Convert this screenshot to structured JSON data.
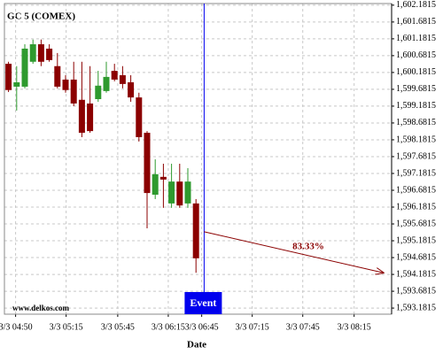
{
  "chart_data": {
    "type": "candlestick",
    "title": "GC 5 (COMEX)",
    "x_label": "Date",
    "watermark": "www.delkos.com",
    "up_color": "#2e9a2e",
    "down_color": "#8b0000",
    "open": [
      1600.44,
      1599.76,
      1599.76,
      1600.5,
      1601.02,
      1600.89,
      1600.37,
      1599.97,
      1599.97,
      1599.37,
      1599.26,
      1599.39,
      1599.63,
      1600.23,
      1600.1,
      1599.89,
      1599.44,
      1598.39,
      1596.55,
      1597.08,
      1596.29,
      1596.94,
      1596.29,
      1596.29
    ],
    "high": [
      1600.5,
      1600.37,
      1601.02,
      1601.16,
      1601.16,
      1601.02,
      1600.76,
      1600.1,
      1600.5,
      1600.5,
      1600.37,
      1600.23,
      1600.5,
      1600.44,
      1600.37,
      1600.1,
      1599.58,
      1598.44,
      1597.6,
      1597.47,
      1597.47,
      1597.47,
      1597.34,
      1596.42
    ],
    "low": [
      1599.6,
      1599.05,
      1599.71,
      1600.44,
      1600.37,
      1600.5,
      1599.71,
      1599.58,
      1599.18,
      1598.26,
      1598.39,
      1599.31,
      1599.58,
      1599.92,
      1599.71,
      1599.31,
      1598.13,
      1595.55,
      1596.42,
      1596.16,
      1596.16,
      1596.16,
      1596.16,
      1594.23
    ],
    "close": [
      1599.66,
      1599.89,
      1600.89,
      1601.02,
      1600.5,
      1600.55,
      1599.76,
      1599.66,
      1599.26,
      1598.39,
      1598.44,
      1599.79,
      1600.05,
      1599.97,
      1599.84,
      1599.44,
      1598.26,
      1596.6,
      1597.16,
      1597.0,
      1596.94,
      1596.23,
      1596.94,
      1594.66
    ],
    "xlim": [
      -0.5,
      47
    ],
    "xticks": [
      {
        "value": 0.87,
        "label": "3/3 04:50"
      },
      {
        "value": 7.07,
        "label": "3/3 05:15"
      },
      {
        "value": 13.4,
        "label": "3/3 05:45"
      },
      {
        "value": 19.6,
        "label": "3/3 06:15"
      },
      {
        "value": 23.7,
        "label": "3/3 06:45"
      },
      {
        "value": 29.9,
        "label": "3/3 07:15"
      },
      {
        "value": 36.1,
        "label": "3/3 07:45"
      },
      {
        "value": 42.4,
        "label": "3/3 08:15"
      }
    ],
    "ylim": [
      1593.0,
      1602.23
    ],
    "yticks": [
      {
        "value": 1593.1815,
        "label": "1,593.1815"
      },
      {
        "value": 1593.6815,
        "label": "1,593.6815"
      },
      {
        "value": 1594.1815,
        "label": "1,594.1815"
      },
      {
        "value": 1594.6815,
        "label": "1,594.6815"
      },
      {
        "value": 1595.1815,
        "label": "1,595.1815"
      },
      {
        "value": 1595.6815,
        "label": "1,595.6815"
      },
      {
        "value": 1596.1815,
        "label": "1,596.1815"
      },
      {
        "value": 1596.6815,
        "label": "1,596.6815"
      },
      {
        "value": 1597.1815,
        "label": "1,597.1815"
      },
      {
        "value": 1597.6815,
        "label": "1,597.6815"
      },
      {
        "value": 1598.1815,
        "label": "1,598.1815"
      },
      {
        "value": 1598.6815,
        "label": "1,598.6815"
      },
      {
        "value": 1599.1815,
        "label": "1,599.1815"
      },
      {
        "value": 1599.6815,
        "label": "1,599.6815"
      },
      {
        "value": 1600.1815,
        "label": "1,600.1815"
      },
      {
        "value": 1600.6815,
        "label": "1,600.6815"
      },
      {
        "value": 1601.1815,
        "label": "1,601.1815"
      },
      {
        "value": 1601.6815,
        "label": "1,601.6815"
      },
      {
        "value": 1602.1815,
        "label": "1,602.1815"
      }
    ],
    "grid": true,
    "event": {
      "label": "Event",
      "x": 24,
      "color": "#0000ee"
    },
    "projection": {
      "label": "83.33%",
      "x": [
        24,
        46
      ],
      "y": [
        1595.45,
        1594.23
      ],
      "color": "#8b0000"
    }
  }
}
